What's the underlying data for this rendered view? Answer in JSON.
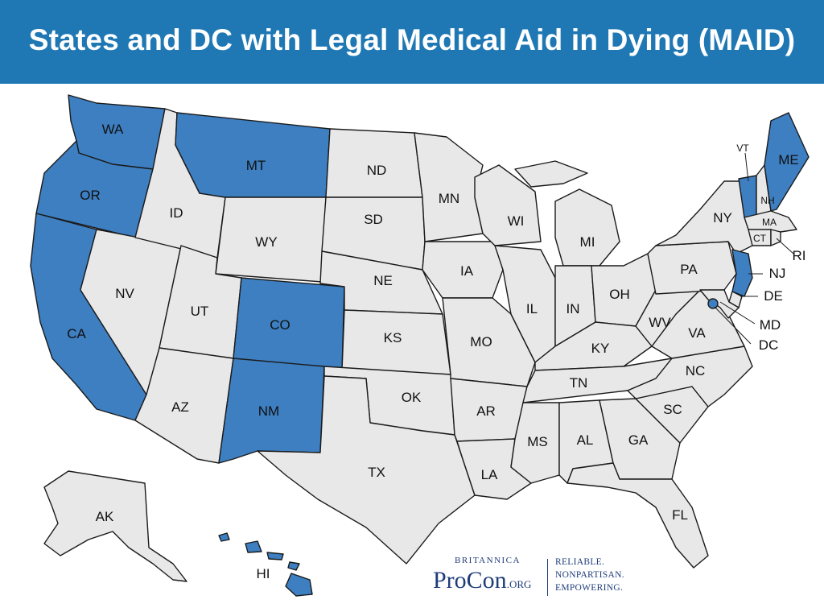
{
  "title": "States and DC with Legal Medical Aid in Dying (MAID)",
  "colors": {
    "legal": "#3d7fc1",
    "not_legal": "#e8e8e8",
    "header": "#1f78b4",
    "stroke": "#1b1b1b"
  },
  "states": {
    "WA": {
      "label": "WA",
      "legal": true
    },
    "OR": {
      "label": "OR",
      "legal": true
    },
    "CA": {
      "label": "CA",
      "legal": true
    },
    "NV": {
      "label": "NV",
      "legal": false
    },
    "ID": {
      "label": "ID",
      "legal": false
    },
    "MT": {
      "label": "MT",
      "legal": true
    },
    "WY": {
      "label": "WY",
      "legal": false
    },
    "UT": {
      "label": "UT",
      "legal": false
    },
    "AZ": {
      "label": "AZ",
      "legal": false
    },
    "CO": {
      "label": "CO",
      "legal": true
    },
    "NM": {
      "label": "NM",
      "legal": true
    },
    "ND": {
      "label": "ND",
      "legal": false
    },
    "SD": {
      "label": "SD",
      "legal": false
    },
    "NE": {
      "label": "NE",
      "legal": false
    },
    "KS": {
      "label": "KS",
      "legal": false
    },
    "OK": {
      "label": "OK",
      "legal": false
    },
    "TX": {
      "label": "TX",
      "legal": false
    },
    "MN": {
      "label": "MN",
      "legal": false
    },
    "IA": {
      "label": "IA",
      "legal": false
    },
    "MO": {
      "label": "MO",
      "legal": false
    },
    "AR": {
      "label": "AR",
      "legal": false
    },
    "LA": {
      "label": "LA",
      "legal": false
    },
    "WI": {
      "label": "WI",
      "legal": false
    },
    "IL": {
      "label": "IL",
      "legal": false
    },
    "MI": {
      "label": "MI",
      "legal": false
    },
    "IN": {
      "label": "IN",
      "legal": false
    },
    "OH": {
      "label": "OH",
      "legal": false
    },
    "KY": {
      "label": "KY",
      "legal": false
    },
    "TN": {
      "label": "TN",
      "legal": false
    },
    "MS": {
      "label": "MS",
      "legal": false
    },
    "AL": {
      "label": "AL",
      "legal": false
    },
    "GA": {
      "label": "GA",
      "legal": false
    },
    "FL": {
      "label": "FL",
      "legal": false
    },
    "SC": {
      "label": "SC",
      "legal": false
    },
    "NC": {
      "label": "NC",
      "legal": false
    },
    "VA": {
      "label": "VA",
      "legal": false
    },
    "WV": {
      "label": "WV",
      "legal": false
    },
    "PA": {
      "label": "PA",
      "legal": false
    },
    "NY": {
      "label": "NY",
      "legal": false
    },
    "VT": {
      "label": "VT",
      "legal": true
    },
    "NH": {
      "label": "NH",
      "legal": false
    },
    "ME": {
      "label": "ME",
      "legal": true
    },
    "MA": {
      "label": "MA",
      "legal": false
    },
    "CT": {
      "label": "CT",
      "legal": false
    },
    "RI": {
      "label": "RI",
      "legal": false
    },
    "NJ": {
      "label": "NJ",
      "legal": true
    },
    "DE": {
      "label": "DE",
      "legal": false
    },
    "MD": {
      "label": "MD",
      "legal": false
    },
    "DC": {
      "label": "DC",
      "legal": true
    },
    "AK": {
      "label": "AK",
      "legal": false
    },
    "HI": {
      "label": "HI",
      "legal": true
    }
  },
  "logo": {
    "britannica": "BRITANNICA",
    "procon": "ProCon",
    "org": ".ORG",
    "tagline": [
      "RELIABLE.",
      "NONPARTISAN.",
      "EMPOWERING."
    ]
  }
}
